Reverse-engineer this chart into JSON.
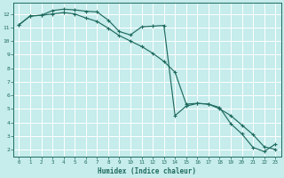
{
  "xlabel": "Humidex (Indice chaleur)",
  "bg_color": "#c6ecec",
  "grid_color": "#ffffff",
  "line_color": "#1f6b5e",
  "xlim": [
    -0.5,
    23.5
  ],
  "ylim": [
    1.5,
    12.8
  ],
  "yticks": [
    2,
    3,
    4,
    5,
    6,
    7,
    8,
    9,
    10,
    11,
    12
  ],
  "xticks": [
    0,
    1,
    2,
    3,
    4,
    5,
    6,
    7,
    8,
    9,
    10,
    11,
    12,
    13,
    14,
    15,
    16,
    17,
    18,
    19,
    20,
    21,
    22,
    23
  ],
  "line1_x": [
    0,
    1,
    2,
    3,
    4,
    5,
    6,
    7,
    8,
    9,
    10,
    11,
    12,
    13,
    14,
    15,
    16,
    17,
    18,
    19,
    20,
    21,
    22,
    23
  ],
  "line1_y": [
    11.2,
    11.85,
    11.9,
    12.25,
    12.35,
    12.3,
    12.2,
    12.15,
    11.55,
    10.7,
    10.45,
    11.05,
    11.1,
    11.15,
    4.5,
    5.2,
    5.4,
    5.35,
    5.1,
    3.9,
    3.15,
    2.15,
    1.85,
    2.4
  ],
  "line2_x": [
    0,
    1,
    2,
    3,
    4,
    5,
    6,
    7,
    8,
    9,
    10,
    11,
    12,
    13,
    14,
    15,
    16,
    17,
    18,
    19,
    20,
    21,
    22,
    23
  ],
  "line2_y": [
    11.2,
    11.85,
    11.9,
    12.0,
    12.1,
    12.0,
    11.7,
    11.45,
    10.95,
    10.4,
    10.0,
    9.6,
    9.1,
    8.5,
    7.7,
    5.35,
    5.4,
    5.35,
    5.0,
    4.5,
    3.8,
    3.1,
    2.2,
    2.0
  ]
}
